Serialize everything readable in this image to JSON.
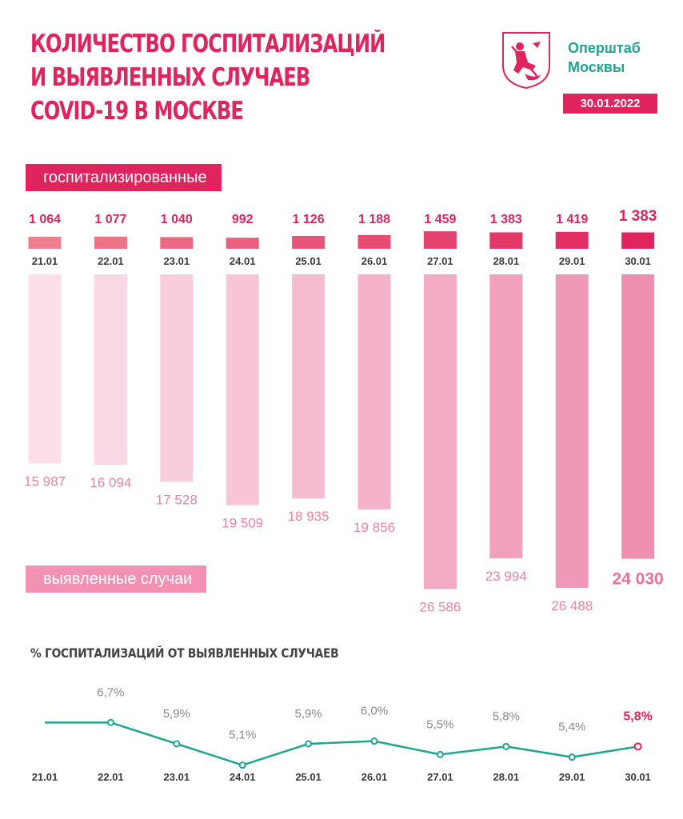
{
  "header": {
    "title_lines": [
      "КОЛИЧЕСТВО ГОСПИТАЛИЗАЦИЙ",
      "И ВЫЯВЛЕННЫХ СЛУЧАЕВ",
      "COVID-19 В МОСКВЕ"
    ],
    "brand_lines": [
      "Оперштаб",
      "Москвы"
    ],
    "date": "30.01.2022",
    "logo_icon": "moscow-coat-of-arms-icon"
  },
  "colors": {
    "accent": "#e0245e",
    "brand": "#1fa591",
    "cases_light": "#fbe0ea",
    "cases_dark": "#ee8fb2",
    "line": "#1fa591"
  },
  "legend": {
    "hospitalized": "госпитализированные",
    "cases": "выявленные случаи"
  },
  "chart_data": [
    {
      "type": "bar",
      "categories": [
        "21.01",
        "22.01",
        "23.01",
        "24.01",
        "25.01",
        "26.01",
        "27.01",
        "28.01",
        "29.01",
        "30.01"
      ],
      "series": [
        {
          "name": "госпитализированные",
          "values": [
            1064,
            1077,
            1040,
            992,
            1126,
            1188,
            1459,
            1383,
            1419,
            1383
          ],
          "labels": [
            "1 064",
            "1 077",
            "1 040",
            "992",
            "1 126",
            "1 188",
            "1 459",
            "1 383",
            "1 419",
            "1 383"
          ]
        },
        {
          "name": "выявленные случаи",
          "values": [
            15987,
            16094,
            17528,
            19509,
            18935,
            19856,
            26586,
            23994,
            26488,
            24030
          ],
          "labels": [
            "15 987",
            "16 094",
            "17 528",
            "19 509",
            "18 935",
            "19 856",
            "26 586",
            "23 994",
            "26 488",
            "24 030"
          ]
        }
      ]
    },
    {
      "type": "line",
      "title": "% ГОСПИТАЛИЗАЦИЙ ОТ ВЫЯВЛЕННЫХ СЛУЧАЕВ",
      "categories": [
        "21.01",
        "22.01",
        "23.01",
        "24.01",
        "25.01",
        "26.01",
        "27.01",
        "28.01",
        "29.01",
        "30.01"
      ],
      "values": [
        null,
        6.7,
        5.9,
        5.1,
        5.9,
        6.0,
        5.5,
        5.8,
        5.4,
        5.8
      ],
      "labels": [
        "",
        "6,7%",
        "5,9%",
        "5,1%",
        "5,9%",
        "6,0%",
        "5,5%",
        "5,8%",
        "5,4%",
        "5,8%"
      ]
    }
  ]
}
